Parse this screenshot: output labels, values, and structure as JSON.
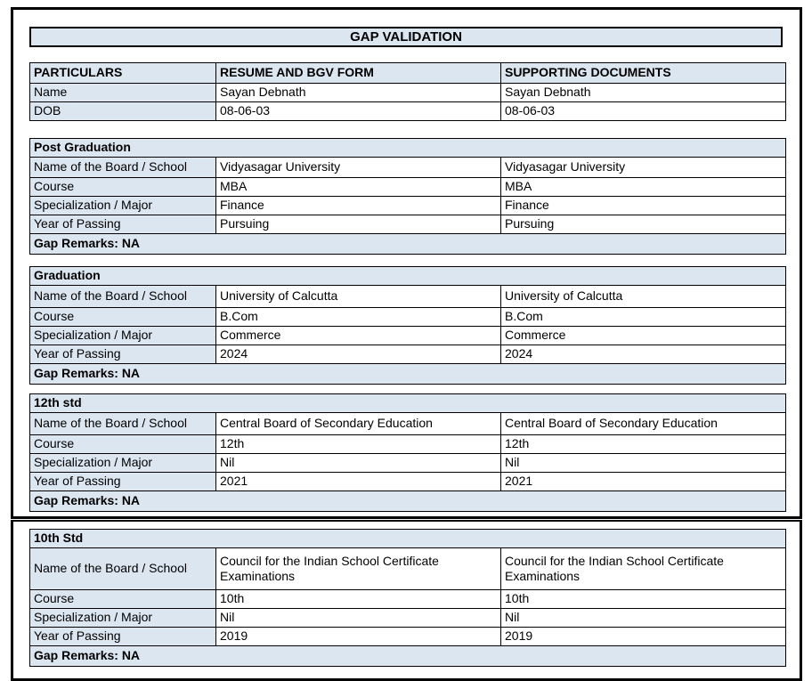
{
  "document_title": "GAP VALIDATION",
  "info_table": {
    "headers": [
      "PARTICULARS",
      "RESUME AND BGV FORM",
      "SUPPORTING DOCUMENTS"
    ],
    "rows": [
      {
        "label": "Name",
        "resume": "Sayan Debnath",
        "supporting": "Sayan Debnath"
      },
      {
        "label": "DOB",
        "resume": "08-06-03",
        "supporting": "08-06-03"
      }
    ]
  },
  "sections": [
    {
      "title": "Post Graduation",
      "rows": [
        {
          "label": "Name of the Board / School",
          "resume": "Vidyasagar University",
          "supporting": "Vidyasagar University"
        },
        {
          "label": "Course",
          "resume": "MBA",
          "supporting": "MBA"
        },
        {
          "label": "Specialization / Major",
          "resume": "Finance",
          "supporting": "Finance"
        },
        {
          "label": "Year of Passing",
          "resume": "Pursuing",
          "supporting": "Pursuing"
        }
      ],
      "gap_remarks": "Gap Remarks: NA"
    },
    {
      "title": "Graduation",
      "rows": [
        {
          "label": "Name of the Board / School",
          "resume": "University of Calcutta",
          "supporting": "University of Calcutta"
        },
        {
          "label": "Course",
          "resume": "B.Com",
          "supporting": "B.Com"
        },
        {
          "label": "Specialization / Major",
          "resume": "Commerce",
          "supporting": "Commerce"
        },
        {
          "label": "Year of Passing",
          "resume": "2024",
          "supporting": "2024"
        }
      ],
      "gap_remarks": "Gap Remarks: NA"
    },
    {
      "title": "12th std",
      "rows": [
        {
          "label": "Name of the Board / School",
          "resume": "Central Board of Secondary Education",
          "supporting": "Central Board of Secondary Education"
        },
        {
          "label": "Course",
          "resume": "12th",
          "supporting": "12th"
        },
        {
          "label": "Specialization / Major",
          "resume": "Nil",
          "supporting": "Nil"
        },
        {
          "label": "Year of Passing",
          "resume": "2021",
          "supporting": "2021"
        }
      ],
      "gap_remarks": "Gap Remarks: NA"
    },
    {
      "title": "10th Std",
      "rows": [
        {
          "label": "Name of the Board / School",
          "resume": "Council for the Indian School Certificate Examinations",
          "supporting": "Council for the Indian School Certificate Examinations"
        },
        {
          "label": "Course",
          "resume": "10th",
          "supporting": "10th"
        },
        {
          "label": "Specialization / Major",
          "resume": "Nil",
          "supporting": "Nil"
        },
        {
          "label": "Year of Passing",
          "resume": "2019",
          "supporting": "2019"
        }
      ],
      "gap_remarks": "Gap Remarks: NA"
    }
  ],
  "colors": {
    "header_fill": "#dce6f1",
    "border": "#000000",
    "text": "#000000",
    "page_background": "#ffffff"
  }
}
